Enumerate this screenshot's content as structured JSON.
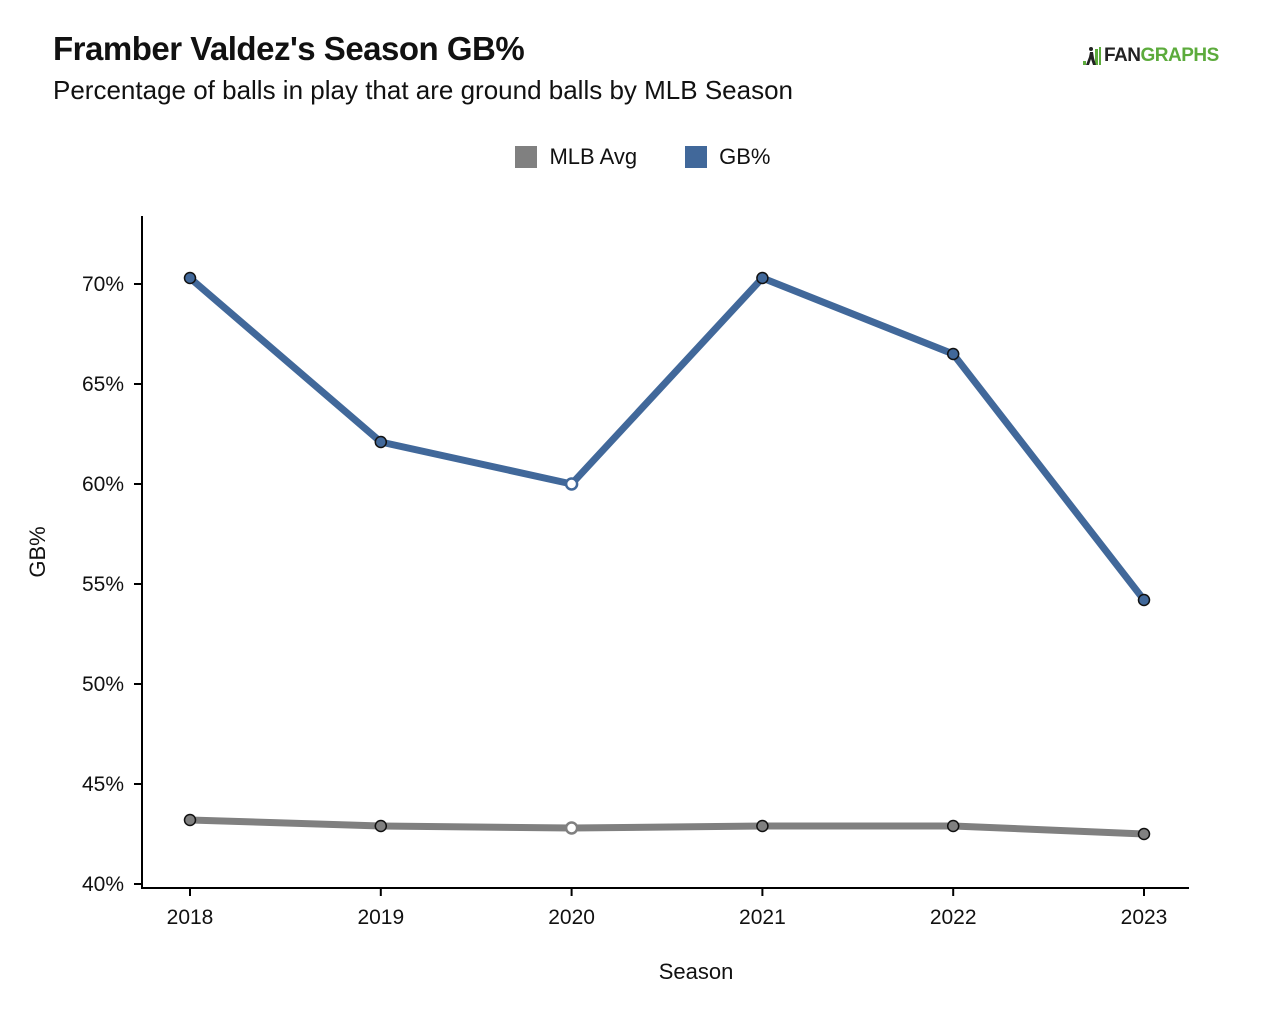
{
  "header": {
    "title": "Framber Valdez's Season GB%",
    "subtitle": "Percentage of balls in play that are ground balls by MLB Season"
  },
  "brand": {
    "fan": "FAN",
    "graphs": "GRAPHS",
    "icon": "fangraphs-logo-icon"
  },
  "colors": {
    "mlb_avg": "#808080",
    "gb_pct": "#41689a",
    "brand_green": "#5cab3c"
  },
  "chart_data": {
    "type": "line",
    "title": "Framber Valdez's Season GB%",
    "subtitle": "Percentage of balls in play that are ground balls by MLB Season",
    "xlabel": "Season",
    "ylabel": "GB%",
    "categories": [
      "2018",
      "2019",
      "2020",
      "2021",
      "2022",
      "2023"
    ],
    "y_ticks": [
      "40%",
      "45%",
      "50%",
      "55%",
      "60%",
      "65%",
      "70%"
    ],
    "y_tick_values": [
      40,
      45,
      50,
      55,
      60,
      65,
      70
    ],
    "ylim": [
      40,
      73
    ],
    "grid": false,
    "legend_position": "top",
    "series": [
      {
        "name": "MLB Avg",
        "color": "#808080",
        "values": [
          43.2,
          42.9,
          42.8,
          42.9,
          42.9,
          42.5
        ]
      },
      {
        "name": "GB%",
        "color": "#41689a",
        "values": [
          70.3,
          62.1,
          60.0,
          70.3,
          66.5,
          54.2
        ]
      }
    ],
    "hollow_marker_category": "2020"
  }
}
